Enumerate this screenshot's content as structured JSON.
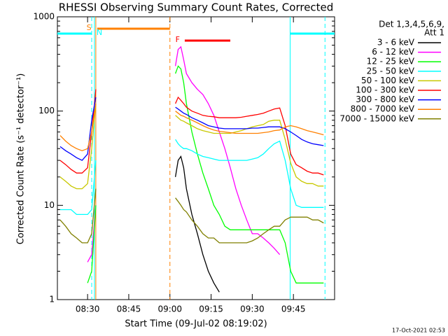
{
  "chart_data": {
    "type": "line",
    "title": "RHESSI Observing Summary Count Rates, Corrected",
    "x_label": "Start Time (09-Jul-02 08:19:02)",
    "y_label": "Corrected Count Rate (s⁻¹ detector⁻¹)",
    "legend_title": [
      "Det 1,3,4,5,6,9,",
      "Att 1"
    ],
    "footer": "17-Oct-2021 02:53",
    "log_y": true,
    "legend": "right",
    "xlim": [
      19,
      120
    ],
    "xticks": [
      {
        "value": 30,
        "label": "08:30"
      },
      {
        "value": 45,
        "label": "08:45"
      },
      {
        "value": 60,
        "label": "09:00"
      },
      {
        "value": 75,
        "label": "09:15"
      },
      {
        "value": 90,
        "label": "09:30"
      },
      {
        "value": 105,
        "label": "09:45"
      }
    ],
    "ylim": [
      1,
      1000
    ],
    "yticks": [
      1,
      10,
      100,
      1000
    ],
    "x": [
      20,
      22,
      24,
      26,
      28,
      30,
      31.5,
      33,
      47,
      62,
      63,
      64,
      65,
      66,
      68,
      70,
      72,
      74,
      76,
      78,
      80,
      82,
      84,
      86,
      88,
      90,
      92,
      94,
      96,
      98,
      100,
      102,
      104,
      106,
      108,
      110,
      112,
      114,
      116
    ],
    "series": [
      {
        "name": "3 - 6 keV",
        "color": "#000000",
        "values": [
          null,
          null,
          null,
          null,
          null,
          null,
          null,
          null,
          null,
          20,
          30,
          33,
          25,
          15,
          8,
          5,
          3,
          2,
          1.5,
          1.2,
          null,
          null,
          null,
          null,
          null,
          null,
          null,
          null,
          null,
          null,
          null,
          null,
          null,
          null,
          null,
          null,
          null,
          null,
          null
        ]
      },
      {
        "name": "6 - 12 keV",
        "color": "#ff00ff",
        "values": [
          null,
          null,
          null,
          null,
          null,
          2.5,
          3,
          10,
          null,
          300,
          450,
          480,
          350,
          250,
          200,
          170,
          150,
          120,
          90,
          60,
          40,
          25,
          15,
          10,
          7,
          5,
          5,
          4.5,
          4,
          3.5,
          3,
          null,
          null,
          null,
          null,
          null,
          null,
          null,
          null
        ]
      },
      {
        "name": "12 - 25 keV",
        "color": "#00ff00",
        "values": [
          null,
          null,
          null,
          null,
          null,
          1.5,
          2,
          10,
          null,
          250,
          300,
          280,
          200,
          120,
          60,
          35,
          22,
          15,
          10,
          8,
          6,
          5.5,
          5.5,
          5.5,
          5.5,
          5.5,
          5.5,
          5.5,
          5.5,
          5.5,
          5.5,
          4,
          2,
          1.5,
          1.5,
          1.5,
          1.5,
          1.5,
          1.5
        ]
      },
      {
        "name": "25 - 50 keV",
        "color": "#00ffff",
        "values": [
          9,
          9,
          9,
          8,
          8,
          8,
          9,
          30,
          null,
          50,
          45,
          42,
          40,
          40,
          38,
          35,
          33,
          32,
          31,
          30,
          30,
          30,
          30,
          30,
          30,
          31,
          32,
          35,
          40,
          45,
          48,
          30,
          15,
          10,
          9.5,
          9.5,
          9.5,
          9.5,
          9.5
        ]
      },
      {
        "name": "50 - 100 keV",
        "color": "#c8c800",
        "values": [
          20,
          18,
          16,
          15,
          15,
          17,
          40,
          120,
          null,
          90,
          85,
          80,
          78,
          75,
          70,
          65,
          62,
          60,
          58,
          58,
          58,
          58,
          60,
          62,
          65,
          68,
          70,
          72,
          78,
          80,
          80,
          50,
          28,
          20,
          18,
          17,
          17,
          16,
          16
        ]
      },
      {
        "name": "100 - 300 keV",
        "color": "#ff0000",
        "values": [
          30,
          27,
          24,
          22,
          22,
          25,
          60,
          170,
          null,
          120,
          140,
          130,
          120,
          110,
          100,
          95,
          90,
          88,
          87,
          85,
          85,
          85,
          85,
          86,
          88,
          90,
          92,
          95,
          100,
          105,
          108,
          70,
          35,
          27,
          25,
          23,
          22,
          22,
          21
        ]
      },
      {
        "name": "300 - 800 keV",
        "color": "#0000ff",
        "values": [
          42,
          38,
          35,
          32,
          30,
          35,
          80,
          140,
          null,
          110,
          105,
          100,
          95,
          92,
          85,
          80,
          75,
          70,
          68,
          66,
          65,
          65,
          65,
          65,
          65,
          66,
          66,
          67,
          68,
          68,
          68,
          65,
          60,
          55,
          50,
          47,
          45,
          44,
          43
        ]
      },
      {
        "name": "800 - 7000 keV",
        "color": "#ff8000",
        "values": [
          55,
          48,
          43,
          40,
          38,
          40,
          60,
          120,
          null,
          100,
          95,
          90,
          88,
          85,
          80,
          75,
          70,
          66,
          63,
          61,
          60,
          59,
          58,
          58,
          58,
          58,
          58,
          59,
          60,
          62,
          63,
          68,
          70,
          68,
          65,
          62,
          60,
          58,
          56
        ]
      },
      {
        "name": "7000 - 15000 keV",
        "color": "#808000",
        "values": [
          7,
          6,
          5,
          4.5,
          4,
          4,
          5,
          15,
          null,
          12,
          11,
          10,
          9,
          8.5,
          7,
          6,
          5,
          4.5,
          4.5,
          4,
          4,
          4,
          4,
          4,
          4,
          4.2,
          4.5,
          5,
          5.5,
          6,
          6,
          7,
          7.5,
          7.5,
          7.5,
          7.5,
          7,
          7,
          6.5
        ]
      }
    ],
    "intervals": [
      {
        "x": [
          19,
          31.5
        ],
        "color": "#00ffff"
      },
      {
        "x": [
          33.5,
          60
        ],
        "color": "#ff8000"
      },
      {
        "x": [
          65.4,
          82
        ],
        "color": "#ff0000"
      },
      {
        "x": [
          103.8,
          120
        ],
        "color": "#00ffff"
      }
    ],
    "markers": [
      {
        "x": 31.5,
        "color": "#00ffff",
        "dashed": true
      },
      {
        "x": 32.5,
        "color": "#00ffff",
        "dashed": false
      },
      {
        "x": 33,
        "color": "#ff8000",
        "dashed": false
      },
      {
        "x": 60,
        "color": "#ff8000",
        "dashed": true
      },
      {
        "x": 103.8,
        "color": "#00ffff",
        "dashed": false
      },
      {
        "x": 116.5,
        "color": "#00ffff",
        "dashed": true
      }
    ],
    "annotations": [
      {
        "text": "S",
        "x": 30.5,
        "color": "#ff8000"
      },
      {
        "text": "N",
        "x": 34.3,
        "color": "#00ffff"
      },
      {
        "text": "F",
        "x": 62.8,
        "color": "#ff0000"
      }
    ]
  }
}
